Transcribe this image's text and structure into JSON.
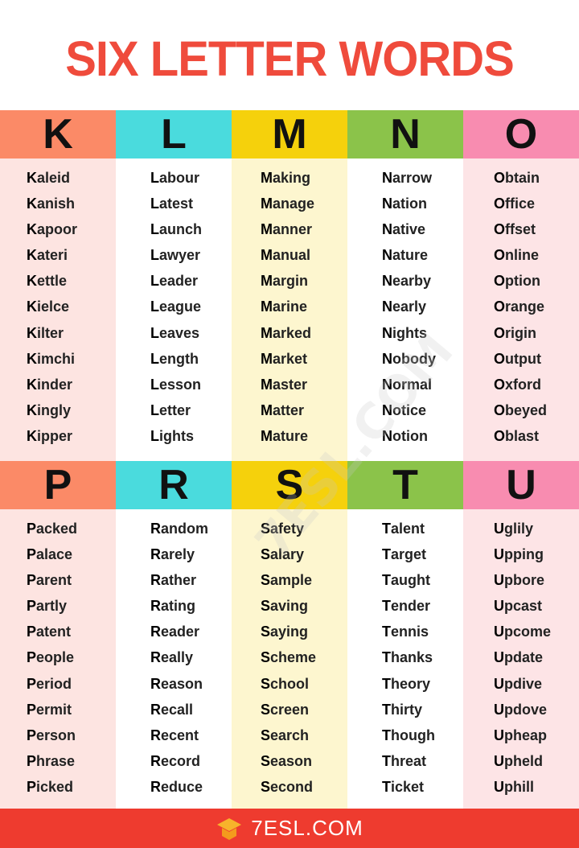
{
  "title": "SIX LETTER WORDS",
  "colors": {
    "title": "#ef4b3c",
    "footer": "#ee3b2f"
  },
  "sections": [
    {
      "columns": [
        {
          "letter": "K",
          "header_color": "#fb8a67",
          "bg": "#fde4e1",
          "words": [
            "Kaleid",
            "Kanish",
            "Kapoor",
            "Kateri",
            "Kettle",
            "Kielce",
            "Kilter",
            "Kimchi",
            "Kinder",
            "Kingly",
            "Kipper"
          ]
        },
        {
          "letter": "L",
          "header_color": "#4adbdd",
          "bg": "#ffffff",
          "words": [
            "Labour",
            "Latest",
            "Launch",
            "Lawyer",
            "Leader",
            "League",
            "Leaves",
            "Length",
            "Lesson",
            "Letter",
            "Lights"
          ]
        },
        {
          "letter": "M",
          "header_color": "#f5d10c",
          "bg": "#fdf6cf",
          "words": [
            "Making",
            "Manage",
            "Manner",
            "Manual",
            "Margin",
            "Marine",
            "Marked",
            "Market",
            "Master",
            "Matter",
            "Mature"
          ]
        },
        {
          "letter": "N",
          "header_color": "#8bc34a",
          "bg": "#ffffff",
          "words": [
            "Narrow",
            "Nation",
            "Native",
            "Nature",
            "Nearby",
            "Nearly",
            "Nights",
            "Nobody",
            "Normal",
            "Notice",
            "Notion"
          ]
        },
        {
          "letter": "O",
          "header_color": "#f88cb0",
          "bg": "#fde4e6",
          "words": [
            "Obtain",
            "Office",
            "Offset",
            "Online",
            "Option",
            "Orange",
            "Origin",
            "Output",
            "Oxford",
            "Obeyed",
            "Oblast"
          ]
        }
      ]
    },
    {
      "columns": [
        {
          "letter": "P",
          "header_color": "#fb8a67",
          "bg": "#fde4e1",
          "words": [
            "Packed",
            "Palace",
            "Parent",
            "Partly",
            "Patent",
            "People",
            "Period",
            "Permit",
            "Person",
            "Phrase",
            "Picked"
          ]
        },
        {
          "letter": "R",
          "header_color": "#4adbdd",
          "bg": "#ffffff",
          "words": [
            "Random",
            "Rarely",
            "Rather",
            "Rating",
            "Reader",
            "Really",
            "Reason",
            "Recall",
            "Recent",
            "Record",
            "Reduce"
          ]
        },
        {
          "letter": "S",
          "header_color": "#f5d10c",
          "bg": "#fdf6cf",
          "words": [
            "Safety",
            "Salary",
            "Sample",
            "Saving",
            "Saying",
            "Scheme",
            "School",
            "Screen",
            "Search",
            "Season",
            "Second"
          ]
        },
        {
          "letter": "T",
          "header_color": "#8bc34a",
          "bg": "#ffffff",
          "words": [
            "Talent",
            "Target",
            "Taught",
            "Tender",
            "Tennis",
            "Thanks",
            "Theory",
            "Thirty",
            "Though",
            "Threat",
            "Ticket"
          ]
        },
        {
          "letter": "U",
          "header_color": "#f88cb0",
          "bg": "#fde4e6",
          "words": [
            "Uglily",
            "Upping",
            "Upbore",
            "Upcast",
            "Upcome",
            "Update",
            "Updive",
            "Updove",
            "Upheap",
            "Upheld",
            "Uphill"
          ]
        }
      ]
    }
  ],
  "footer": {
    "logo_text": "7ESL.COM",
    "logo_icon": "graduation-cap-icon"
  },
  "watermark": "7ESL.COM"
}
